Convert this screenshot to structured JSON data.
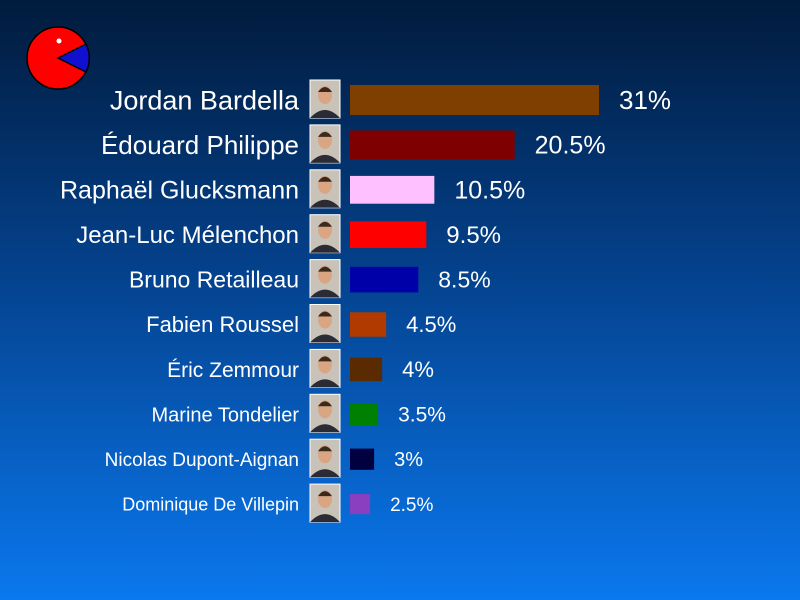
{
  "logo": {
    "icon": "pie-pacman-logo",
    "colors": {
      "main": "#ff0000",
      "wedge": "#1010d0",
      "eye": "#ffffff"
    }
  },
  "chart_data": {
    "type": "bar",
    "orientation": "horizontal",
    "title": "",
    "xlabel": "",
    "ylabel": "",
    "xlim": [
      0,
      31
    ],
    "grid": false,
    "legend": "none",
    "categories": [
      "Jordan Bardella",
      "Édouard Philippe",
      "Raphaël Glucksmann",
      "Jean-Luc Mélenchon",
      "Bruno Retailleau",
      "Fabien Roussel",
      "Éric Zemmour",
      "Marine Tondelier",
      "Nicolas Dupont-Aignan",
      "Dominique De Villepin"
    ],
    "values": [
      31,
      20.5,
      10.5,
      9.5,
      8.5,
      4.5,
      4,
      3.5,
      3,
      2.5
    ],
    "value_labels": [
      "31%",
      "20.5%",
      "10.5%",
      "9.5%",
      "8.5%",
      "4.5%",
      "4%",
      "3.5%",
      "3%",
      "2.5%"
    ],
    "colors": [
      "#7f3f00",
      "#7f0000",
      "#ffc0ff",
      "#ff0000",
      "#0000a8",
      "#b03a00",
      "#5a2a00",
      "#008000",
      "#000040",
      "#8a3ec0"
    ]
  }
}
